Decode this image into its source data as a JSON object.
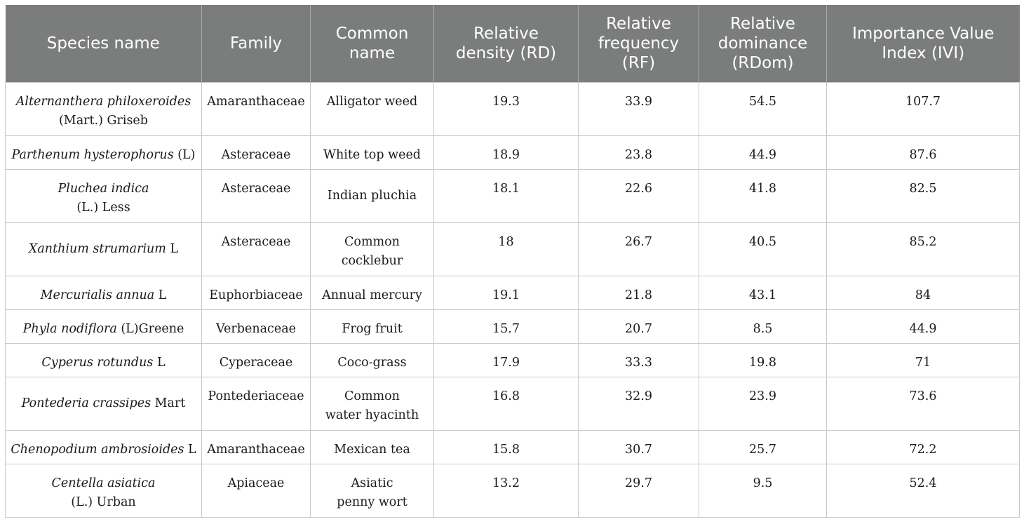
{
  "headers": [
    {
      "lines": [
        "Species name"
      ]
    },
    {
      "lines": [
        "Family"
      ]
    },
    {
      "lines": [
        "Common",
        "name"
      ]
    },
    {
      "lines": [
        "Relative",
        "density (RD)"
      ]
    },
    {
      "lines": [
        "Relative",
        "frequency",
        "(RF)"
      ]
    },
    {
      "lines": [
        "Relative",
        "dominance",
        "(RDom)"
      ]
    },
    {
      "lines": [
        "Importance Value",
        "Index (IVI)"
      ]
    }
  ],
  "rows": [
    {
      "species_italic": "Alternanthera philoxeroides",
      "species_author": "(Mart.) Griseb",
      "species_break": true,
      "family": "Amaranthaceae",
      "common": [
        "Alligator weed"
      ],
      "rd": "19.3",
      "rf": "33.9",
      "rdom": "54.5",
      "ivi": "107.7"
    },
    {
      "species_italic": "Parthenum hysterophorus",
      "species_author": " (L)",
      "species_break": false,
      "family": "Asteraceae",
      "common": [
        "White top weed"
      ],
      "rd": "18.9",
      "rf": "23.8",
      "rdom": "44.9",
      "ivi": "87.6"
    },
    {
      "species_italic": "Pluchea indica",
      "species_author": "(L.) Less",
      "species_break": true,
      "family": "Asteraceae",
      "common": [
        "Indian pluchia"
      ],
      "rd": "18.1",
      "rf": "22.6",
      "rdom": "41.8",
      "ivi": "82.5"
    },
    {
      "species_italic": "Xanthium strumarium",
      "species_author": " L",
      "species_break": false,
      "family": "Asteraceae",
      "common": [
        "Common",
        "cocklebur"
      ],
      "rd": "18",
      "rf": "26.7",
      "rdom": "40.5",
      "ivi": "85.2"
    },
    {
      "species_italic": "Mercurialis annua",
      "species_author": " L",
      "species_break": false,
      "family": "Euphorbiaceae",
      "common": [
        "Annual mercury"
      ],
      "rd": "19.1",
      "rf": "21.8",
      "rdom": "43.1",
      "ivi": "84"
    },
    {
      "species_italic": "Phyla nodiflora",
      "species_author": " (L)Greene",
      "species_break": false,
      "family": "Verbenaceae",
      "common": [
        "Frog fruit"
      ],
      "rd": "15.7",
      "rf": "20.7",
      "rdom": "8.5",
      "ivi": "44.9"
    },
    {
      "species_italic": "Cyperus rotundus",
      "species_author": " L",
      "species_break": false,
      "family": "Cyperaceae",
      "common": [
        "Coco-grass"
      ],
      "rd": "17.9",
      "rf": "33.3",
      "rdom": "19.8",
      "ivi": "71"
    },
    {
      "species_italic": "Pontederia crassipes",
      "species_author": " Mart",
      "species_break": false,
      "family": "Pontederiaceae",
      "common": [
        "Common",
        "water hyacinth"
      ],
      "rd": "16.8",
      "rf": "32.9",
      "rdom": "23.9",
      "ivi": "73.6"
    },
    {
      "species_italic": "Chenopodium ambrosioides",
      "species_author": " L",
      "species_break": false,
      "family": "Amaranthaceae",
      "common": [
        "Mexican tea"
      ],
      "rd": "15.8",
      "rf": "30.7",
      "rdom": "25.7",
      "ivi": "72.2"
    },
    {
      "species_italic": "Centella asiatica",
      "species_author": "(L.) Urban",
      "species_break": true,
      "family": "Apiaceae",
      "common": [
        "Asiatic",
        "penny wort"
      ],
      "rd": "13.2",
      "rf": "29.7",
      "rdom": "9.5",
      "ivi": "52.4"
    }
  ]
}
